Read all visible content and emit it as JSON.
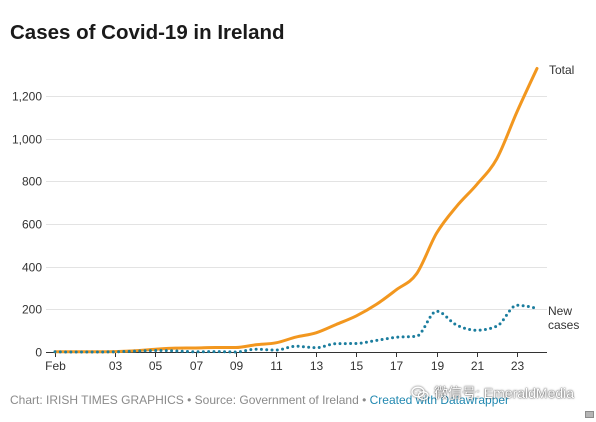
{
  "chart_data": {
    "type": "line",
    "title": "Cases of Covid-19 in Ireland",
    "x": [
      "Feb 29",
      "Mar 1",
      "Mar 2",
      "Mar 3",
      "Mar 4",
      "Mar 5",
      "Mar 6",
      "Mar 7",
      "Mar 8",
      "Mar 9",
      "Mar 10",
      "Mar 11",
      "Mar 12",
      "Mar 13",
      "Mar 14",
      "Mar 15",
      "Mar 16",
      "Mar 17",
      "Mar 18",
      "Mar 19",
      "Mar 20",
      "Mar 21",
      "Mar 22",
      "Mar 23",
      "Mar 24"
    ],
    "x_ticks": [
      {
        "x": "Feb 29",
        "label": "Feb"
      },
      {
        "x": "Mar 3",
        "label": "03"
      },
      {
        "x": "Mar 5",
        "label": "05"
      },
      {
        "x": "Mar 7",
        "label": "07"
      },
      {
        "x": "Mar 9",
        "label": "09"
      },
      {
        "x": "Mar 11",
        "label": "11"
      },
      {
        "x": "Mar 13",
        "label": "13"
      },
      {
        "x": "Mar 15",
        "label": "15"
      },
      {
        "x": "Mar 17",
        "label": "17"
      },
      {
        "x": "Mar 19",
        "label": "19"
      },
      {
        "x": "Mar 21",
        "label": "21"
      },
      {
        "x": "Mar 23",
        "label": "23"
      }
    ],
    "y_ticks": [
      {
        "value": 0,
        "label": "0"
      },
      {
        "value": 200,
        "label": "200"
      },
      {
        "value": 400,
        "label": "400"
      },
      {
        "value": 600,
        "label": "600"
      },
      {
        "value": 800,
        "label": "800"
      },
      {
        "value": 1000,
        "label": "1,000"
      },
      {
        "value": 1200,
        "label": "1,200"
      }
    ],
    "ylim": [
      0,
      1350
    ],
    "grid": true,
    "legend": "right",
    "series": [
      {
        "name": "Total",
        "color": "#f2971f",
        "values": [
          1,
          1,
          1,
          2,
          6,
          13,
          18,
          19,
          21,
          21,
          34,
          43,
          70,
          90,
          129,
          169,
          223,
          292,
          366,
          557,
          683,
          785,
          906,
          1125,
          1329
        ]
      },
      {
        "name": "New cases",
        "color": "#1b7d9e",
        "values": [
          1,
          0,
          0,
          1,
          4,
          7,
          5,
          1,
          2,
          0,
          13,
          9,
          27,
          20,
          39,
          40,
          54,
          69,
          74,
          191,
          126,
          102,
          121,
          219,
          204
        ]
      }
    ]
  },
  "footer": {
    "credit": "Chart: IRISH TIMES GRAPHICS • Source: Government of Ireland • ",
    "link": "Created with Datawrapper"
  },
  "watermark": {
    "icon": "wechat-icon",
    "text": "微信号: EmeraldMedia"
  },
  "corner_icon": "small-box-icon"
}
